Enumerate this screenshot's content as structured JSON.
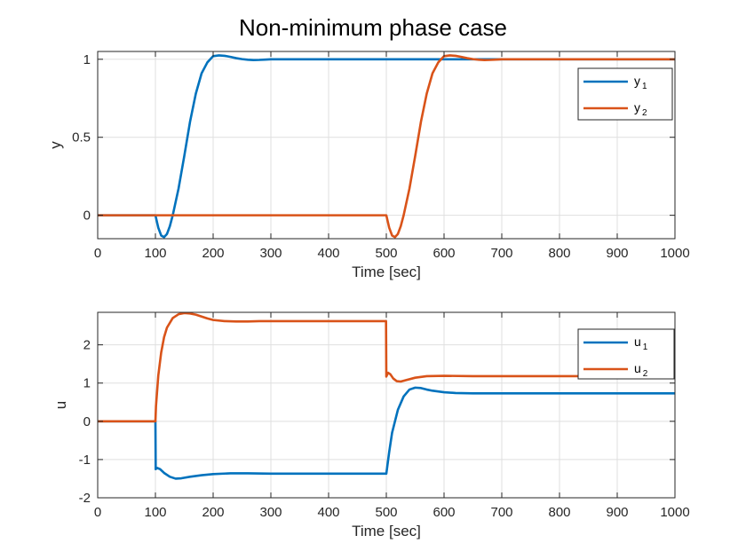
{
  "figure": {
    "title": "Non-minimum phase case"
  },
  "chart_data": [
    {
      "type": "line",
      "xlabel": "Time [sec]",
      "ylabel": "y",
      "xlim": [
        0,
        1000
      ],
      "ylim": [
        -0.15,
        1.05
      ],
      "xticks": [
        0,
        100,
        200,
        300,
        400,
        500,
        600,
        700,
        800,
        900,
        1000
      ],
      "yticks": [
        0,
        0.5,
        1
      ],
      "yticklabels": [
        "0",
        "0.5",
        "1"
      ],
      "grid": true,
      "legend_position": "top-right",
      "series": [
        {
          "name": "y1",
          "label_main": "y",
          "label_sub": "1",
          "color": "#0072BD",
          "x": [
            0,
            100,
            105,
            110,
            115,
            120,
            125,
            130,
            140,
            150,
            160,
            170,
            180,
            190,
            200,
            210,
            220,
            230,
            240,
            250,
            260,
            270,
            280,
            290,
            300,
            350,
            400,
            450,
            500,
            600,
            700,
            800,
            900,
            1000
          ],
          "y": [
            0,
            0,
            -0.08,
            -0.13,
            -0.14,
            -0.12,
            -0.07,
            0.0,
            0.17,
            0.38,
            0.6,
            0.78,
            0.91,
            0.98,
            1.02,
            1.025,
            1.022,
            1.015,
            1.007,
            1.001,
            0.997,
            0.995,
            0.996,
            0.998,
            1.0,
            1.0,
            1.0,
            1.0,
            1.0,
            1.0,
            1.0,
            1.0,
            1.0,
            1.0
          ]
        },
        {
          "name": "y2",
          "label_main": "y",
          "label_sub": "2",
          "color": "#D95319",
          "x": [
            0,
            500,
            505,
            510,
            515,
            520,
            525,
            530,
            540,
            550,
            560,
            570,
            580,
            590,
            600,
            610,
            620,
            630,
            640,
            650,
            660,
            670,
            680,
            690,
            700,
            800,
            900,
            1000
          ],
          "y": [
            0,
            0,
            -0.08,
            -0.13,
            -0.14,
            -0.12,
            -0.07,
            0.0,
            0.17,
            0.38,
            0.6,
            0.78,
            0.91,
            0.98,
            1.02,
            1.025,
            1.022,
            1.015,
            1.007,
            1.001,
            0.997,
            0.995,
            0.996,
            0.998,
            1.0,
            1.0,
            1.0,
            1.0
          ]
        }
      ]
    },
    {
      "type": "line",
      "xlabel": "Time [sec]",
      "ylabel": "u",
      "xlim": [
        0,
        1000
      ],
      "ylim": [
        -2,
        2.85
      ],
      "xticks": [
        0,
        100,
        200,
        300,
        400,
        500,
        600,
        700,
        800,
        900,
        1000
      ],
      "yticks": [
        -2,
        -1,
        0,
        1,
        2
      ],
      "yticklabels": [
        "-2",
        "-1",
        "0",
        "1",
        "2"
      ],
      "grid": true,
      "legend_position": "top-right",
      "series": [
        {
          "name": "u1",
          "label_main": "u",
          "label_sub": "1",
          "color": "#0072BD",
          "x": [
            0,
            100,
            100.5,
            103,
            108,
            115,
            125,
            135,
            145,
            160,
            180,
            200,
            230,
            260,
            300,
            400,
            499.5,
            500,
            505,
            510,
            520,
            530,
            540,
            550,
            560,
            570,
            580,
            600,
            620,
            650,
            700,
            800,
            900,
            1000
          ],
          "y": [
            0,
            0,
            -1.25,
            -1.22,
            -1.25,
            -1.35,
            -1.45,
            -1.5,
            -1.49,
            -1.45,
            -1.41,
            -1.38,
            -1.36,
            -1.36,
            -1.37,
            -1.37,
            -1.37,
            -1.37,
            -0.8,
            -0.3,
            0.3,
            0.65,
            0.83,
            0.88,
            0.87,
            0.83,
            0.8,
            0.76,
            0.74,
            0.73,
            0.73,
            0.73,
            0.73,
            0.73
          ]
        },
        {
          "name": "u2",
          "label_main": "u",
          "label_sub": "2",
          "color": "#D95319",
          "x": [
            0,
            100,
            101,
            105,
            110,
            115,
            120,
            130,
            140,
            150,
            160,
            170,
            180,
            190,
            200,
            220,
            240,
            260,
            280,
            300,
            350,
            400,
            450,
            499.5,
            500,
            503,
            507,
            512,
            518,
            525,
            535,
            550,
            570,
            600,
            650,
            700,
            800,
            900,
            1000
          ],
          "y": [
            0,
            0,
            0.4,
            1.2,
            1.8,
            2.2,
            2.45,
            2.7,
            2.8,
            2.83,
            2.82,
            2.79,
            2.74,
            2.69,
            2.65,
            2.62,
            2.61,
            2.61,
            2.62,
            2.62,
            2.62,
            2.62,
            2.62,
            2.62,
            1.17,
            1.27,
            1.23,
            1.12,
            1.05,
            1.04,
            1.08,
            1.14,
            1.18,
            1.19,
            1.18,
            1.18,
            1.18,
            1.18,
            1.18
          ]
        }
      ]
    }
  ]
}
